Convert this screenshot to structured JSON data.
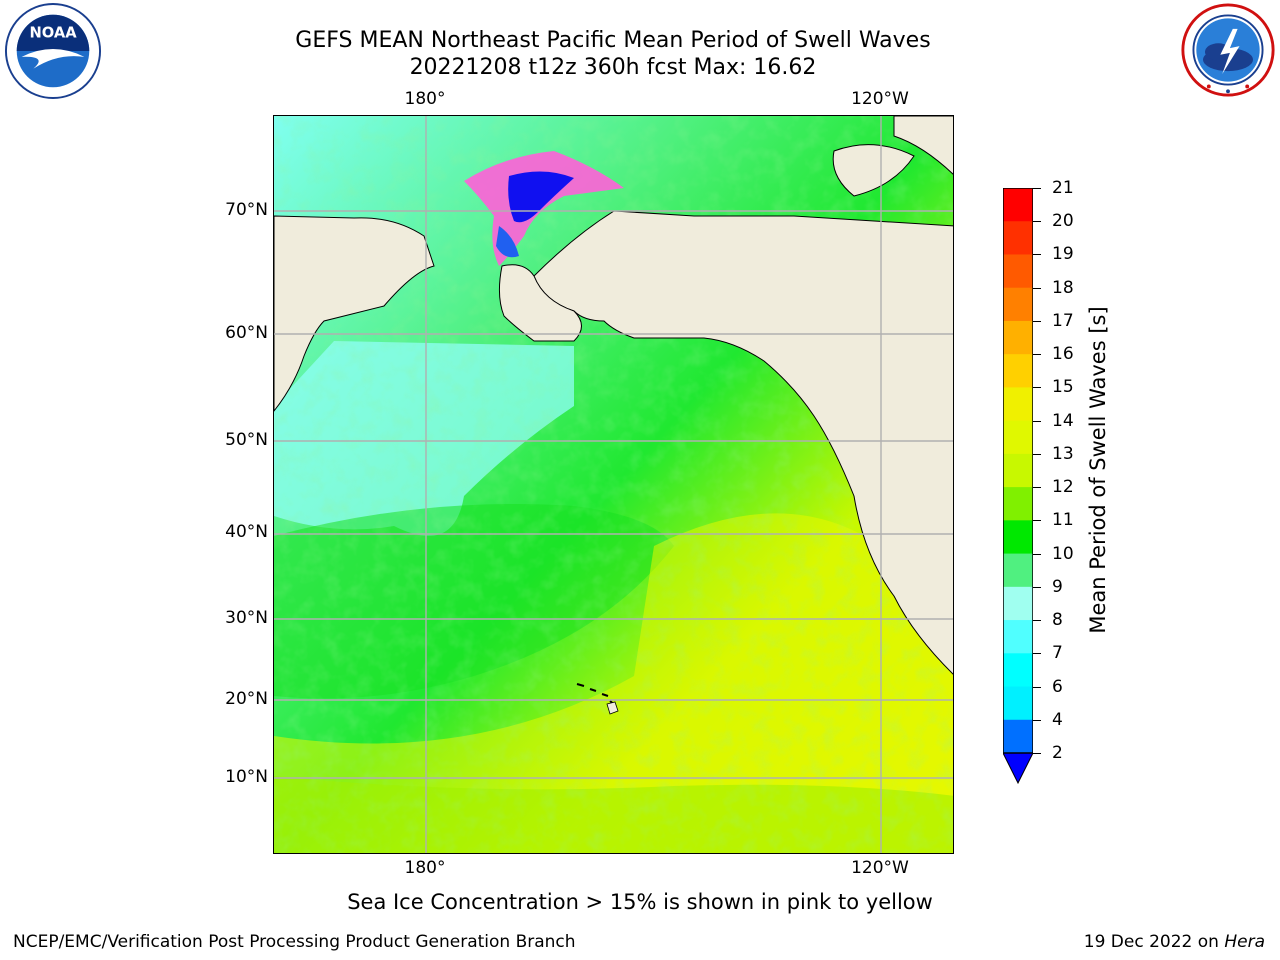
{
  "header": {
    "title_line1": "GEFS MEAN Northeast Pacific Mean Period of Swell Waves",
    "title_line2": "20221208 t12z 360h fcst   Max: 16.62"
  },
  "logos": {
    "left": {
      "icon": "noaa-logo-icon",
      "text": "NOAA"
    },
    "right": {
      "icon": "nws-logo-icon"
    }
  },
  "map": {
    "lon_labels_top": [
      "180°",
      "120°W"
    ],
    "lon_labels_bottom": [
      "180°",
      "120°W"
    ],
    "lat_labels": [
      "70°N",
      "60°N",
      "50°N",
      "40°N",
      "30°N",
      "20°N",
      "10°N"
    ],
    "land_color": "#f0ecdc",
    "grid_color": "#b0b0b0"
  },
  "colorbar": {
    "label": "Mean Period of Swell Waves [s]",
    "ticks": [
      "21",
      "20",
      "19",
      "18",
      "17",
      "16",
      "15",
      "14",
      "13",
      "12",
      "11",
      "10",
      "9",
      "8",
      "7",
      "6",
      "4",
      "2"
    ],
    "colors": [
      "#ff0000",
      "#ff3000",
      "#ff5a00",
      "#ff8000",
      "#ffb000",
      "#ffd000",
      "#f0f000",
      "#e0f800",
      "#c8f800",
      "#80f000",
      "#00e800",
      "#50f080",
      "#a0fff0",
      "#50ffff",
      "#00ffff",
      "#00f0ff",
      "#0070ff"
    ],
    "extend_color": "#0000ff"
  },
  "note": "Sea Ice Concentration > 15% is shown in pink to yellow",
  "footer": {
    "left": "NCEP/EMC/Verification Post Processing Product Generation Branch",
    "right_date": "19 Dec 2022 on ",
    "right_host": "Hera"
  }
}
